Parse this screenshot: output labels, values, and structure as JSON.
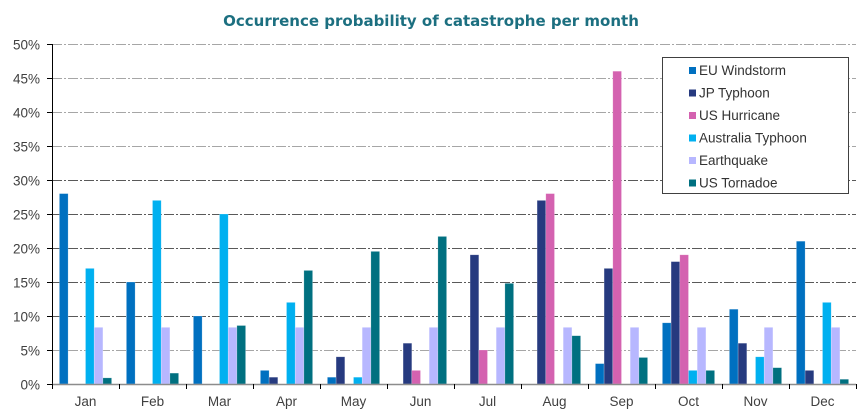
{
  "chart_data": {
    "type": "bar",
    "title": "Occurrence probability of catastrophe per month",
    "xlabel": "",
    "ylabel": "",
    "ylim": [
      0,
      50
    ],
    "y_ticks": [
      "0%",
      "5%",
      "10%",
      "15%",
      "20%",
      "25%",
      "30%",
      "35%",
      "40%",
      "45%",
      "50%"
    ],
    "y_tick_values": [
      0,
      5,
      10,
      15,
      20,
      25,
      30,
      35,
      40,
      45,
      50
    ],
    "grid": true,
    "legend_position": "top-right",
    "categories": [
      "Jan",
      "Feb",
      "Mar",
      "Apr",
      "May",
      "Jun",
      "Jul",
      "Aug",
      "Sep",
      "Oct",
      "Nov",
      "Dec"
    ],
    "series": [
      {
        "name": "EU Windstorm",
        "color": "#0070c0",
        "values": [
          28,
          15,
          10,
          2,
          1,
          0,
          0,
          0,
          3,
          9,
          11,
          21
        ]
      },
      {
        "name": "JP Typhoon",
        "color": "#263a7f",
        "values": [
          0,
          0,
          0,
          1,
          4,
          6,
          19,
          27,
          17,
          18,
          6,
          2
        ]
      },
      {
        "name": "US Hurricane",
        "color": "#d462b0",
        "values": [
          0,
          0,
          0,
          0,
          0,
          2,
          5,
          28,
          46,
          19,
          0,
          0
        ]
      },
      {
        "name": "Australia Typhoon",
        "color": "#00b0f0",
        "values": [
          17,
          27,
          25,
          12,
          1,
          0,
          0,
          0,
          0,
          2,
          4,
          12
        ]
      },
      {
        "name": "Earthquake",
        "color": "#b7b7ff",
        "values": [
          8.33,
          8.33,
          8.33,
          8.33,
          8.33,
          8.33,
          8.33,
          8.33,
          8.33,
          8.33,
          8.33,
          8.33
        ]
      },
      {
        "name": "US Tornadoe",
        "color": "#007080",
        "values": [
          0.9,
          1.6,
          8.6,
          16.7,
          19.5,
          21.7,
          14.8,
          7.1,
          3.9,
          2.0,
          2.4,
          0.7
        ]
      }
    ]
  }
}
